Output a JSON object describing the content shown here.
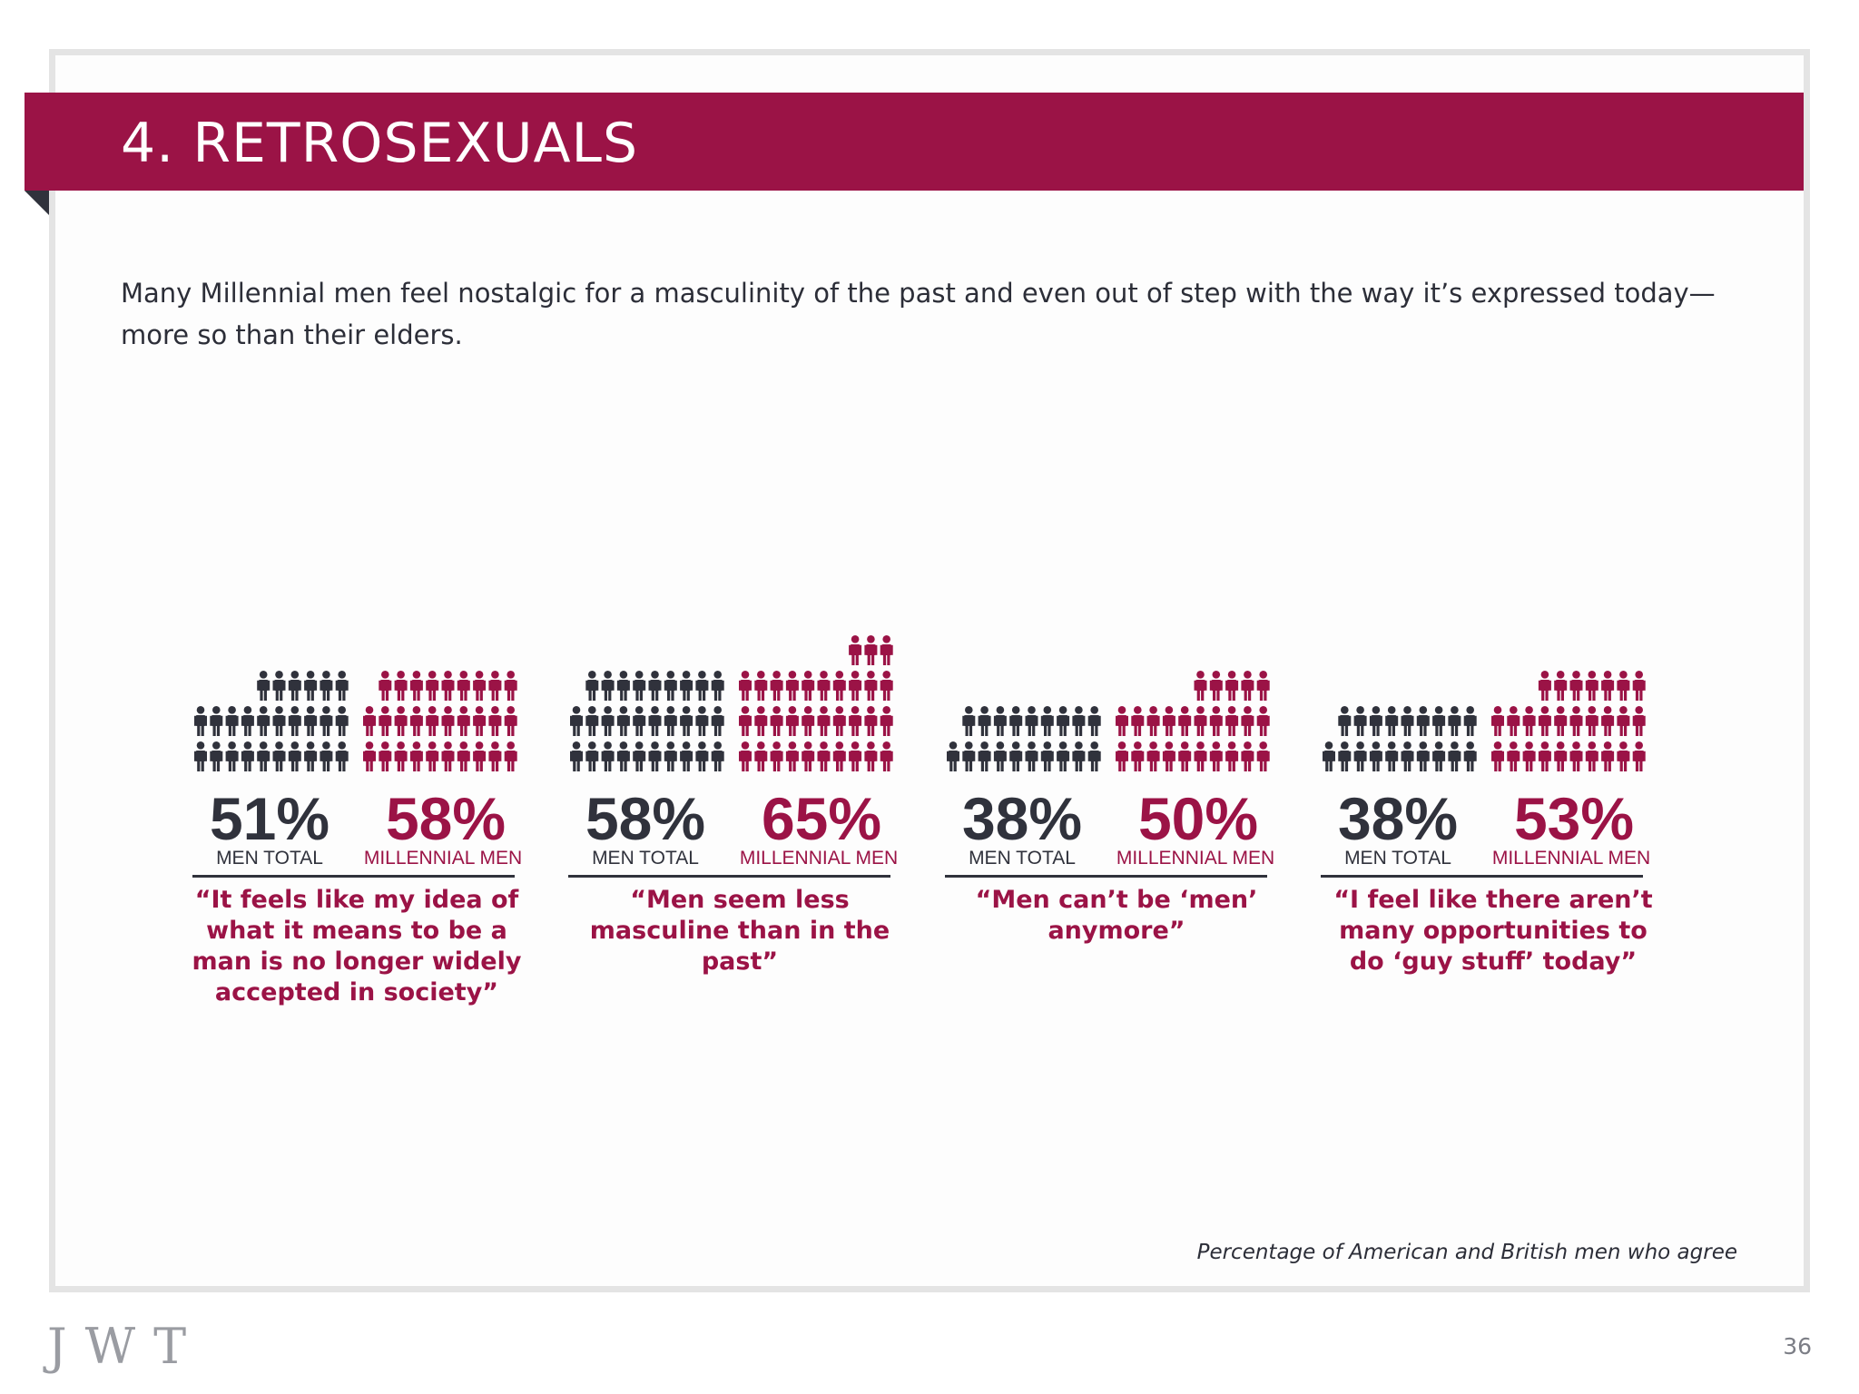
{
  "slide": {
    "title": "4. RETROSEXUALS",
    "intro": "Many Millennial men feel nostalgic for a masculinity of the past and even out of step with the way it’s expressed today—more so than their elders.",
    "source_note": "Percentage of American and British men who agree",
    "logo": "JWT",
    "page_number": "36"
  },
  "colors": {
    "brand": "#9b1346",
    "dark": "#30323c",
    "text": "#2c2e38",
    "frame": "#e4e4e4"
  },
  "chart_data": {
    "type": "bar",
    "icon": "person-icon",
    "icons_per_percent": 0.5,
    "series": [
      {
        "name": "MEN TOTAL",
        "color": "#30323c",
        "values": [
          51,
          58,
          38,
          38
        ]
      },
      {
        "name": "MILLENNIAL MEN",
        "color": "#9b1346",
        "values": [
          58,
          65,
          50,
          53
        ]
      }
    ],
    "value_labels": [
      [
        "51%",
        "58%"
      ],
      [
        "58%",
        "65%"
      ],
      [
        "38%",
        "50%"
      ],
      [
        "38%",
        "53%"
      ]
    ],
    "categories": [
      "“It feels like my idea of what it means to be a man is no longer widely accepted in society”",
      "“Men seem less masculine than in the past”",
      "“Men can’t be ‘men’ anymore”",
      "“I feel like there aren’t many opportunities to do ‘guy stuff’ today”"
    ]
  }
}
